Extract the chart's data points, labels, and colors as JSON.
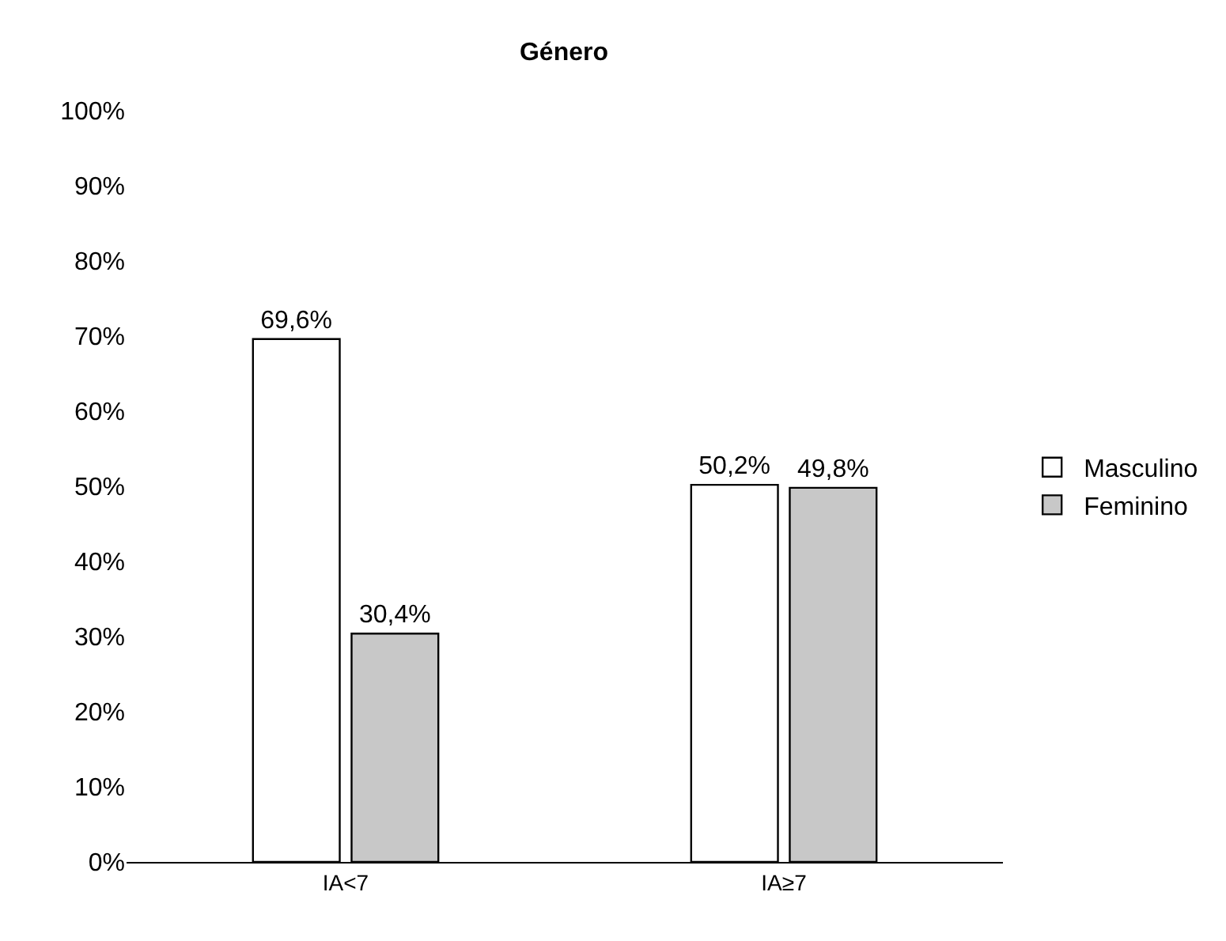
{
  "chart_data": {
    "type": "bar",
    "title": "Género",
    "categories": [
      "IA<7",
      "IA≥7"
    ],
    "series": [
      {
        "name": "Masculino",
        "color": "#ffffff",
        "values": [
          69.6,
          50.2
        ],
        "value_labels": [
          "69,6%",
          "50,2%"
        ]
      },
      {
        "name": "Feminino",
        "color": "#c8c8c8",
        "values": [
          30.4,
          49.8
        ],
        "value_labels": [
          "30,4%",
          "49,8%"
        ]
      }
    ],
    "ylim": [
      0,
      100
    ],
    "yticks": [
      {
        "value": 0,
        "label": "0%"
      },
      {
        "value": 10,
        "label": "10%"
      },
      {
        "value": 20,
        "label": "20%"
      },
      {
        "value": 30,
        "label": "30%"
      },
      {
        "value": 40,
        "label": "40%"
      },
      {
        "value": 50,
        "label": "50%"
      },
      {
        "value": 60,
        "label": "60%"
      },
      {
        "value": 70,
        "label": "70%"
      },
      {
        "value": 80,
        "label": "80%"
      },
      {
        "value": 90,
        "label": "90%"
      },
      {
        "value": 100,
        "label": "100%"
      }
    ],
    "grid": false,
    "legend": "right"
  }
}
